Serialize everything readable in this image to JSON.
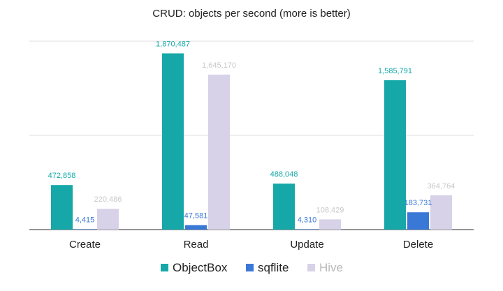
{
  "chart_data": {
    "type": "bar",
    "title": "CRUD: objects per second (more is better)",
    "xlabel": "",
    "ylabel": "",
    "categories": [
      "Create",
      "Read",
      "Update",
      "Delete"
    ],
    "series": [
      {
        "name": "ObjectBox",
        "color": "#16a8a8",
        "values": [
          472858,
          1870487,
          488048,
          1585791
        ],
        "labels": [
          "472,858",
          "1,870,487",
          "488,048",
          "1,585,791"
        ]
      },
      {
        "name": "sqflite",
        "color": "#3a78d8",
        "values": [
          4415,
          47581,
          4310,
          183731
        ],
        "labels": [
          "4,415",
          "47,581",
          "4,310",
          "183,731"
        ]
      },
      {
        "name": "Hive",
        "color": "#d8d2e8",
        "values": [
          220486,
          1645170,
          108429,
          364764
        ],
        "labels": [
          "220,486",
          "1,645,170",
          "108,429",
          "364,764"
        ]
      }
    ],
    "ylim": [
      0,
      2000000
    ],
    "grid": true,
    "axis_tick_labels_visible": false,
    "legend_position": "bottom"
  }
}
